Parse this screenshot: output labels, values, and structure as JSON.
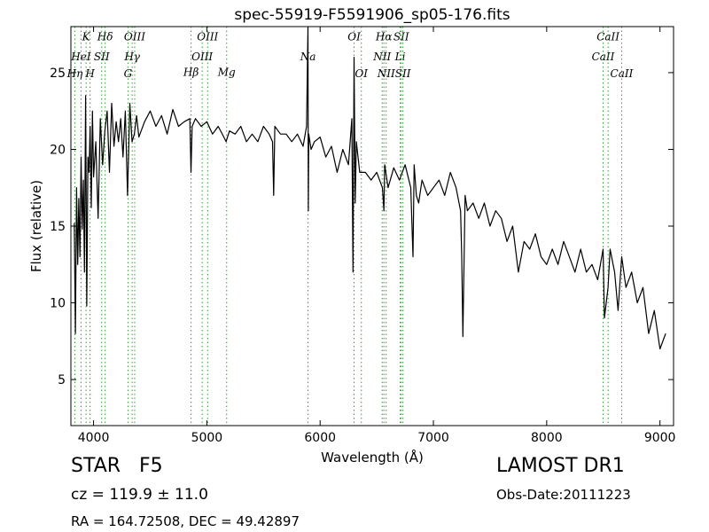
{
  "chart_data": {
    "type": "line",
    "title": "spec-55919-F5591906_sp05-176.fits",
    "xlabel": "Wavelength (Å)",
    "ylabel": "Flux (relative)",
    "xlim": [
      3800,
      9120
    ],
    "ylim": [
      2,
      28
    ],
    "x_ticks": [
      {
        "value": 4000,
        "label": "4000"
      },
      {
        "value": 5000,
        "label": "5000"
      },
      {
        "value": 6000,
        "label": "6000"
      },
      {
        "value": 7000,
        "label": "7000"
      },
      {
        "value": 8000,
        "label": "8000"
      },
      {
        "value": 9000,
        "label": "9000"
      }
    ],
    "y_ticks": [
      {
        "value": 5,
        "label": "5"
      },
      {
        "value": 10,
        "label": "10"
      },
      {
        "value": 15,
        "label": "15"
      },
      {
        "value": 20,
        "label": "20"
      },
      {
        "value": 25,
        "label": "25"
      }
    ],
    "grid": false,
    "line_color": "#000000",
    "marker_color": "#2ca02c",
    "series": [
      {
        "x": [
          3830,
          3840,
          3850,
          3860,
          3870,
          3880,
          3890,
          3900,
          3910,
          3920,
          3930,
          3940,
          3950,
          3960,
          3970,
          3980,
          3990,
          4000,
          4020,
          4040,
          4060,
          4080,
          4100,
          4120,
          4140,
          4160,
          4180,
          4200,
          4220,
          4240,
          4260,
          4280,
          4300,
          4320,
          4340,
          4360,
          4380,
          4400,
          4450,
          4500,
          4550,
          4600,
          4650,
          4700,
          4750,
          4800,
          4850,
          4860,
          4870,
          4900,
          4950,
          5000,
          5050,
          5100,
          5150,
          5170,
          5200,
          5250,
          5300,
          5350,
          5400,
          5450,
          5500,
          5550,
          5580,
          5590,
          5600,
          5650,
          5700,
          5750,
          5800,
          5850,
          5880,
          5893,
          5896,
          5900,
          5920,
          5950,
          6000,
          6050,
          6100,
          6150,
          6200,
          6250,
          6280,
          6290,
          6300,
          6310,
          6320,
          6350,
          6400,
          6450,
          6500,
          6550,
          6563,
          6570,
          6600,
          6650,
          6700,
          6750,
          6800,
          6820,
          6830,
          6850,
          6870,
          6900,
          6950,
          7000,
          7050,
          7100,
          7150,
          7200,
          7240,
          7250,
          7260,
          7280,
          7300,
          7350,
          7400,
          7450,
          7500,
          7550,
          7600,
          7650,
          7700,
          7750,
          7800,
          7850,
          7900,
          7950,
          8000,
          8050,
          8100,
          8150,
          8200,
          8250,
          8300,
          8350,
          8400,
          8450,
          8498,
          8510,
          8542,
          8560,
          8600,
          8630,
          8662,
          8700,
          8750,
          8800,
          8850,
          8900,
          8950,
          9000,
          9050
        ],
        "y": [
          15.2,
          8.0,
          17.5,
          12.5,
          16.8,
          13.0,
          19.5,
          14.8,
          18.0,
          12.0,
          23.5,
          9.8,
          19.5,
          18.5,
          21.5,
          16.2,
          22.5,
          18.2,
          20.5,
          15.5,
          22.0,
          19.0,
          21.2,
          22.5,
          18.5,
          23.0,
          20.2,
          21.8,
          20.5,
          22.0,
          19.5,
          22.5,
          17.0,
          23.0,
          20.5,
          21.0,
          22.2,
          20.8,
          21.8,
          22.5,
          21.5,
          22.2,
          21.0,
          22.6,
          21.5,
          21.8,
          22.0,
          18.5,
          21.5,
          22.0,
          21.5,
          21.8,
          21.0,
          21.5,
          20.8,
          20.5,
          21.2,
          21.0,
          21.5,
          20.5,
          21.0,
          20.5,
          21.5,
          21.0,
          20.5,
          17.0,
          21.5,
          21.0,
          21.0,
          20.5,
          21.0,
          20.2,
          21.5,
          28.0,
          16.0,
          21.0,
          20.0,
          20.5,
          20.8,
          19.5,
          20.2,
          18.5,
          20.0,
          19.0,
          22.0,
          12.0,
          26.0,
          16.5,
          20.5,
          18.5,
          18.5,
          18.0,
          18.5,
          17.5,
          16.0,
          19.0,
          17.5,
          18.8,
          18.0,
          19.0,
          17.5,
          13.0,
          19.0,
          17.0,
          16.5,
          18.0,
          17.0,
          17.5,
          18.0,
          17.0,
          18.5,
          17.5,
          16.0,
          13.0,
          7.8,
          17.0,
          16.0,
          16.5,
          15.5,
          16.5,
          15.0,
          16.0,
          15.5,
          14.0,
          15.0,
          12.0,
          14.0,
          13.5,
          14.5,
          13.0,
          12.5,
          13.5,
          12.5,
          14.0,
          13.0,
          12.0,
          13.5,
          12.0,
          12.5,
          11.5,
          13.5,
          9.0,
          11.0,
          13.5,
          12.0,
          9.5,
          13.0,
          11.0,
          12.0,
          10.0,
          11.0,
          8.0,
          9.5,
          7.0,
          8.0
        ]
      }
    ],
    "lines": [
      {
        "x": 3835,
        "label": "Hη",
        "label_y": 24.7
      },
      {
        "x": 3889,
        "label": "HeI",
        "label_y": 25.8
      },
      {
        "x": 3934,
        "label": "K",
        "label_y": 27.1
      },
      {
        "x": 3969,
        "label": "H",
        "label_y": 24.7
      },
      {
        "x": 4072,
        "label": "SII",
        "label_y": 25.8
      },
      {
        "x": 4102,
        "label": "Hδ",
        "label_y": 27.1
      },
      {
        "x": 4304,
        "label": "G",
        "label_y": 24.7
      },
      {
        "x": 4341,
        "label": "Hγ",
        "label_y": 25.8
      },
      {
        "x": 4363,
        "label": "OIII",
        "label_y": 27.1
      },
      {
        "x": 4861,
        "label": "Hβ",
        "label_y": 24.8
      },
      {
        "x": 4959,
        "label": "OIII",
        "label_y": 25.8
      },
      {
        "x": 5007,
        "label": "OIII",
        "label_y": 27.1
      },
      {
        "x": 5175,
        "label": "Mg",
        "label_y": 24.8
      },
      {
        "x": 5893,
        "label": "Na",
        "label_y": 25.8
      },
      {
        "x": 6300,
        "label": "OI",
        "label_y": 27.1
      },
      {
        "x": 6364,
        "label": "OI",
        "label_y": 24.7
      },
      {
        "x": 6548,
        "label": "NII",
        "label_y": 25.8
      },
      {
        "x": 6563,
        "label": "Hα",
        "label_y": 27.1
      },
      {
        "x": 6583,
        "label": "NII",
        "label_y": 24.7
      },
      {
        "x": 6707,
        "label": "Li",
        "label_y": 25.8
      },
      {
        "x": 6716,
        "label": "SII",
        "label_y": 27.1
      },
      {
        "x": 6731,
        "label": "SII",
        "label_y": 24.7
      },
      {
        "x": 8498,
        "label": "CaII",
        "label_y": 25.8
      },
      {
        "x": 8542,
        "label": "CaII",
        "label_y": 27.1
      },
      {
        "x": 8662,
        "label": "CaII",
        "label_y": 24.7
      }
    ]
  },
  "info": {
    "object_class": "STAR   F5",
    "survey": "LAMOST DR1",
    "redshift": "cz = 119.9 ± 11.0",
    "obs_date": "Obs-Date:20111223",
    "coords": "RA = 164.72508, DEC = 49.42897"
  }
}
